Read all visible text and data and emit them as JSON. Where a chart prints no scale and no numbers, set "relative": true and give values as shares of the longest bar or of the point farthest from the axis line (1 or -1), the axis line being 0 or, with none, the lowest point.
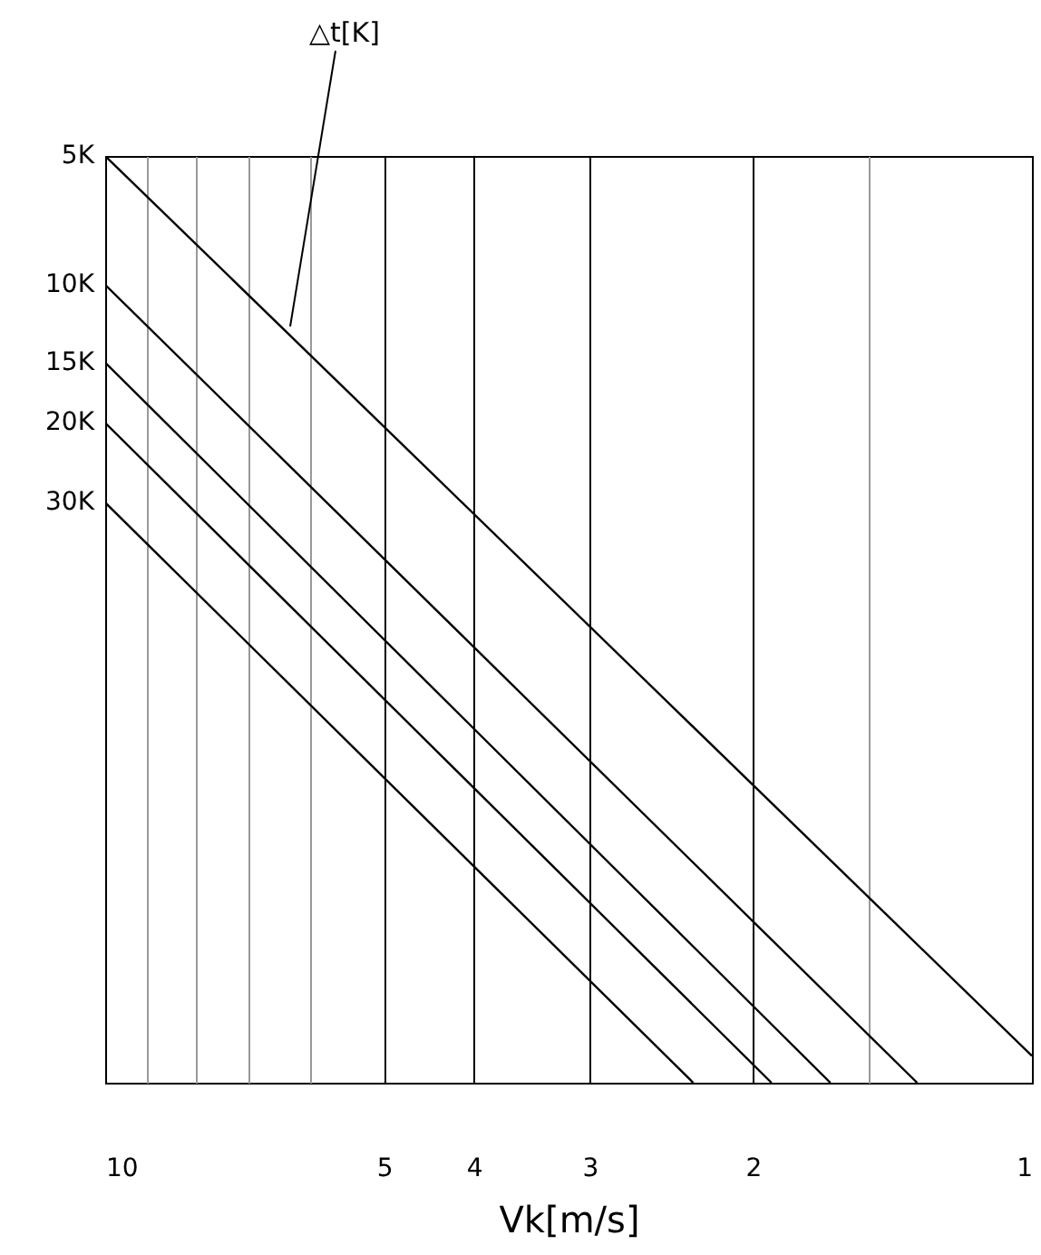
{
  "chart_data": {
    "type": "line",
    "relative": true,
    "xlabel": "Vk[m/s]",
    "log": "x",
    "grid": "x",
    "legend": false,
    "marker": "none",
    "line_style": "solid",
    "xlim": [
      10,
      1
    ],
    "xticks": [
      10,
      {
        "value": 9,
        "label": null
      },
      {
        "value": 8,
        "label": null
      },
      {
        "value": 7,
        "label": null
      },
      {
        "value": 6,
        "label": null
      },
      5,
      4,
      3,
      2,
      {
        "value": 1.5,
        "label": null
      },
      1
    ],
    "annotations": [
      "△t[K]"
    ],
    "series": [
      {
        "name": "5K",
        "color": "#000000",
        "x": [
          10,
          1
        ],
        "values": [
          1,
          0.029
        ]
      },
      {
        "name": "10K",
        "color": "#000000",
        "x": [
          10,
          1.33
        ],
        "values": [
          0.861,
          0
        ]
      },
      {
        "name": "15K",
        "color": "#000000",
        "x": [
          10,
          1.65
        ],
        "values": [
          0.777,
          0
        ]
      },
      {
        "name": "20K",
        "color": "#000000",
        "x": [
          10,
          1.91
        ],
        "values": [
          0.712,
          0
        ]
      },
      {
        "name": "30K",
        "color": "#000000",
        "x": [
          10,
          2.32
        ],
        "values": [
          0.626,
          0
        ]
      }
    ]
  }
}
